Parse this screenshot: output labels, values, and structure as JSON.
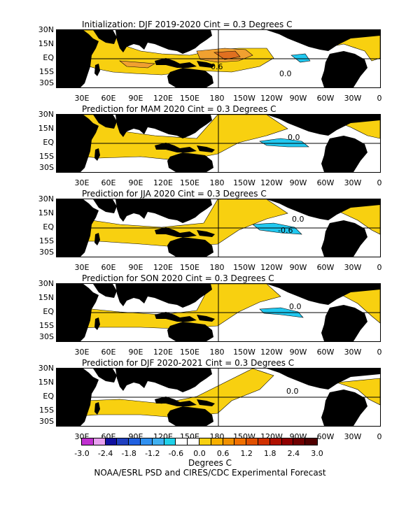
{
  "panels": [
    {
      "title": "Initialization: DJF 2019-2020  Cint = 0.3 Degrees C",
      "contour_labels": [
        "0.6",
        "0.0"
      ]
    },
    {
      "title": "Prediction for MAM 2020  Cint = 0.3 Degrees C",
      "contour_labels": [
        "0.0"
      ]
    },
    {
      "title": "Prediction for JJA 2020  Cint = 0.3 Degrees C",
      "contour_labels": [
        "0.0",
        "-0.6"
      ]
    },
    {
      "title": "Prediction for SON 2020  Cint = 0.3 Degrees C",
      "contour_labels": [
        "0.0"
      ]
    },
    {
      "title": "Prediction for DJF 2020-2021  Cint = 0.3 Degrees C",
      "contour_labels": [
        "0.0"
      ]
    }
  ],
  "lat_labels": [
    "30N",
    "15N",
    "EQ",
    "15S",
    "30S"
  ],
  "lon_labels": [
    "30E",
    "60E",
    "90E",
    "120E",
    "150E",
    "180",
    "150W",
    "120W",
    "90W",
    "60W",
    "30W",
    "0"
  ],
  "colorbar": {
    "tick_labels": [
      "-3.0",
      "-2.4",
      "-1.8",
      "-1.2",
      "-0.6",
      "0.0",
      "0.6",
      "1.2",
      "1.8",
      "2.4",
      "3.0"
    ],
    "colors": [
      "#c030d0",
      "#e8a0f0",
      "#1010a0",
      "#2040c0",
      "#2060e0",
      "#3090f0",
      "#40b0f0",
      "#20d0e8",
      "#ffffff",
      "#ffffff",
      "#f8d010",
      "#f8b000",
      "#f09000",
      "#f07000",
      "#e05000",
      "#d03000",
      "#b01000",
      "#900000",
      "#700000",
      "#500000"
    ],
    "units": "Degrees C"
  },
  "footer": "NOAA/ESRL PSD and CIRES/CDC Experimental Forecast",
  "colors": {
    "land": "#000000",
    "warm": "#f8d010",
    "warm2": "#f0a030",
    "warm3": "#e07020",
    "cool": "#20c8f0"
  }
}
